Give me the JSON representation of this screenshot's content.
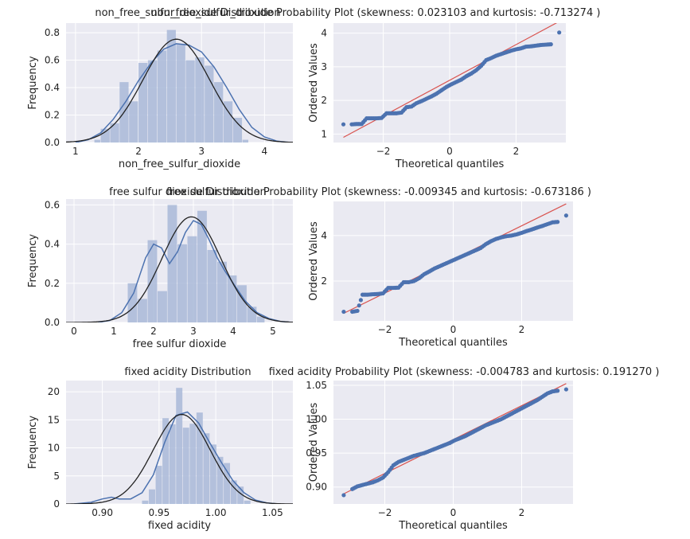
{
  "colors": {
    "panel_bg": "#eaeaf2",
    "grid": "#ffffff",
    "hist_fill": "#a9b8d8",
    "kde_line": "#4c72b0",
    "normal_fit_line": "#222222",
    "qq_points": "#4c72b0",
    "qq_reference_line": "#d9534f"
  },
  "chart_data": [
    {
      "type": "bar",
      "title": "non_free_sulfur_dioxide Distribution",
      "xlabel": "non_free_sulfur_dioxide",
      "ylabel": "Frequency",
      "xlim": [
        0.85,
        4.45
      ],
      "ylim": [
        0,
        0.87
      ],
      "xticks": [
        1,
        2,
        3,
        4
      ],
      "yticks": [
        0.0,
        0.2,
        0.4,
        0.6,
        0.8
      ],
      "ytick_labels": [
        "0.0",
        "0.2",
        "0.4",
        "0.6",
        "0.8"
      ],
      "grid": true,
      "bins": [
        {
          "x0": 1.3,
          "x1": 1.4,
          "h": 0.02
        },
        {
          "x0": 1.4,
          "x1": 1.55,
          "h": 0.1
        },
        {
          "x0": 1.55,
          "x1": 1.7,
          "h": 0.14
        },
        {
          "x0": 1.7,
          "x1": 1.85,
          "h": 0.44
        },
        {
          "x0": 1.85,
          "x1": 2.0,
          "h": 0.3
        },
        {
          "x0": 2.0,
          "x1": 2.15,
          "h": 0.58
        },
        {
          "x0": 2.15,
          "x1": 2.3,
          "h": 0.6
        },
        {
          "x0": 2.3,
          "x1": 2.45,
          "h": 0.67
        },
        {
          "x0": 2.45,
          "x1": 2.6,
          "h": 0.82
        },
        {
          "x0": 2.6,
          "x1": 2.75,
          "h": 0.72
        },
        {
          "x0": 2.75,
          "x1": 2.9,
          "h": 0.6
        },
        {
          "x0": 2.9,
          "x1": 3.05,
          "h": 0.62
        },
        {
          "x0": 3.05,
          "x1": 3.2,
          "h": 0.56
        },
        {
          "x0": 3.2,
          "x1": 3.35,
          "h": 0.44
        },
        {
          "x0": 3.35,
          "x1": 3.5,
          "h": 0.3
        },
        {
          "x0": 3.5,
          "x1": 3.65,
          "h": 0.18
        },
        {
          "x0": 3.65,
          "x1": 3.75,
          "h": 0.02
        }
      ],
      "kde": {
        "x": [
          1.0,
          1.2,
          1.4,
          1.6,
          1.8,
          2.0,
          2.2,
          2.4,
          2.6,
          2.8,
          3.0,
          3.2,
          3.4,
          3.6,
          3.8,
          4.0,
          4.2,
          4.4
        ],
        "y": [
          0.0,
          0.02,
          0.07,
          0.17,
          0.3,
          0.45,
          0.58,
          0.68,
          0.72,
          0.71,
          0.66,
          0.55,
          0.4,
          0.24,
          0.11,
          0.04,
          0.01,
          0.0
        ]
      },
      "normal_fit": {
        "mean": 2.6,
        "std": 0.53
      }
    },
    {
      "type": "scatter",
      "title": "non_free_sulfur_dioxide Probability Plot (skewness: 0.023103 and kurtosis: -0.713274 )",
      "xlabel": "Theoretical quantiles",
      "ylabel": "Ordered Values",
      "xlim": [
        -3.5,
        3.5
      ],
      "ylim": [
        0.75,
        4.3
      ],
      "xticks": [
        -2,
        0,
        2
      ],
      "xtick_labels": [
        "−2",
        "0",
        "2"
      ],
      "yticks": [
        1,
        2,
        3,
        4
      ],
      "grid": true,
      "points": {
        "x": [
          -3.2,
          -2.95,
          -2.8,
          -2.65,
          -2.5,
          -2.35,
          -2.2,
          -2.05,
          -1.9,
          -1.75,
          -1.6,
          -1.45,
          -1.3,
          -1.15,
          -1.0,
          -0.85,
          -0.7,
          -0.55,
          -0.4,
          -0.25,
          -0.1,
          0.05,
          0.2,
          0.35,
          0.5,
          0.65,
          0.8,
          0.95,
          1.1,
          1.25,
          1.4,
          1.55,
          1.7,
          1.85,
          2.0,
          2.15,
          2.3,
          2.45,
          2.6,
          2.75,
          2.9,
          3.05,
          3.3
        ],
        "y": [
          1.29,
          1.29,
          1.3,
          1.3,
          1.47,
          1.47,
          1.47,
          1.48,
          1.62,
          1.62,
          1.62,
          1.64,
          1.8,
          1.82,
          1.92,
          1.98,
          2.05,
          2.12,
          2.2,
          2.3,
          2.4,
          2.48,
          2.55,
          2.62,
          2.72,
          2.8,
          2.9,
          3.03,
          3.2,
          3.26,
          3.33,
          3.38,
          3.43,
          3.48,
          3.52,
          3.55,
          3.6,
          3.61,
          3.63,
          3.65,
          3.66,
          3.67,
          4.02
        ]
      },
      "fit_line": {
        "slope": 0.53,
        "intercept": 2.6
      }
    },
    {
      "type": "bar",
      "title": "free sulfur dioxide Distribution",
      "xlabel": "free sulfur dioxide",
      "ylabel": "Frequency",
      "xlim": [
        -0.2,
        5.5
      ],
      "ylim": [
        0,
        0.63
      ],
      "xticks": [
        0,
        1,
        2,
        3,
        4,
        5
      ],
      "yticks": [
        0.0,
        0.2,
        0.4,
        0.6
      ],
      "ytick_labels": [
        "0.0",
        "0.2",
        "0.4",
        "0.6"
      ],
      "grid": true,
      "bins": [
        {
          "x0": 1.35,
          "x1": 1.6,
          "h": 0.2
        },
        {
          "x0": 1.6,
          "x1": 1.85,
          "h": 0.12
        },
        {
          "x0": 1.85,
          "x1": 2.1,
          "h": 0.42
        },
        {
          "x0": 2.1,
          "x1": 2.35,
          "h": 0.16
        },
        {
          "x0": 2.35,
          "x1": 2.6,
          "h": 0.6
        },
        {
          "x0": 2.6,
          "x1": 2.85,
          "h": 0.4
        },
        {
          "x0": 2.85,
          "x1": 3.1,
          "h": 0.44
        },
        {
          "x0": 3.1,
          "x1": 3.35,
          "h": 0.57
        },
        {
          "x0": 3.35,
          "x1": 3.6,
          "h": 0.37
        },
        {
          "x0": 3.6,
          "x1": 3.85,
          "h": 0.31
        },
        {
          "x0": 3.85,
          "x1": 4.1,
          "h": 0.24
        },
        {
          "x0": 4.1,
          "x1": 4.35,
          "h": 0.19
        },
        {
          "x0": 4.35,
          "x1": 4.6,
          "h": 0.08
        },
        {
          "x0": 4.6,
          "x1": 4.8,
          "h": 0.03
        }
      ],
      "kde": {
        "x": [
          0.6,
          0.9,
          1.2,
          1.5,
          1.8,
          2.0,
          2.2,
          2.4,
          2.6,
          2.8,
          3.0,
          3.2,
          3.4,
          3.6,
          3.8,
          4.0,
          4.3,
          4.6,
          4.9,
          5.2,
          5.5
        ],
        "y": [
          0.0,
          0.01,
          0.05,
          0.15,
          0.33,
          0.4,
          0.38,
          0.3,
          0.36,
          0.46,
          0.52,
          0.5,
          0.42,
          0.33,
          0.26,
          0.2,
          0.11,
          0.05,
          0.02,
          0.005,
          0.0
        ]
      },
      "normal_fit": {
        "mean": 2.95,
        "std": 0.74
      }
    },
    {
      "type": "scatter",
      "title": "free sulfur dioxide Probability Plot (skewness: -0.009345 and kurtosis: -0.673186 )",
      "xlabel": "Theoretical quantiles",
      "ylabel": "Ordered Values",
      "xlim": [
        -3.5,
        3.5
      ],
      "ylim": [
        0.25,
        5.5
      ],
      "xticks": [
        -2,
        0,
        2
      ],
      "xtick_labels": [
        "−2",
        "0",
        "2"
      ],
      "yticks": [
        2,
        4
      ],
      "grid": true,
      "points": {
        "x": [
          -3.2,
          -2.95,
          -2.8,
          -2.65,
          -2.5,
          -2.35,
          -2.2,
          -2.05,
          -1.9,
          -1.75,
          -1.6,
          -1.45,
          -1.3,
          -1.15,
          -1.0,
          -0.85,
          -0.7,
          -0.55,
          -0.4,
          -0.25,
          -0.1,
          0.05,
          0.2,
          0.35,
          0.5,
          0.65,
          0.8,
          0.95,
          1.1,
          1.25,
          1.4,
          1.55,
          1.7,
          1.85,
          2.0,
          2.15,
          2.3,
          2.45,
          2.6,
          2.75,
          2.9,
          3.05,
          3.3
        ],
        "y": [
          0.65,
          0.65,
          0.69,
          1.4,
          1.4,
          1.42,
          1.43,
          1.46,
          1.7,
          1.7,
          1.71,
          1.95,
          1.95,
          2.0,
          2.12,
          2.3,
          2.42,
          2.55,
          2.65,
          2.75,
          2.85,
          2.95,
          3.05,
          3.15,
          3.25,
          3.35,
          3.45,
          3.62,
          3.75,
          3.85,
          3.92,
          3.97,
          4.0,
          4.05,
          4.12,
          4.2,
          4.27,
          4.35,
          4.42,
          4.5,
          4.58,
          4.6,
          4.88
        ]
      },
      "fit_line": {
        "slope": 0.74,
        "intercept": 2.95
      }
    },
    {
      "type": "bar",
      "title": "fixed acidity Distribution",
      "xlabel": "fixed acidity",
      "ylabel": "Frequency",
      "xlim": [
        0.868,
        1.068
      ],
      "ylim": [
        0,
        22
      ],
      "xticks": [
        0.9,
        0.95,
        1.0,
        1.05
      ],
      "xtick_labels": [
        "0.90",
        "0.95",
        "1.00",
        "1.05"
      ],
      "yticks": [
        0,
        5,
        10,
        15,
        20
      ],
      "grid": true,
      "bins": [
        {
          "x0": 0.935,
          "x1": 0.941,
          "h": 0.6
        },
        {
          "x0": 0.941,
          "x1": 0.947,
          "h": 2.6
        },
        {
          "x0": 0.947,
          "x1": 0.953,
          "h": 6.8
        },
        {
          "x0": 0.953,
          "x1": 0.959,
          "h": 15.3
        },
        {
          "x0": 0.959,
          "x1": 0.965,
          "h": 14.2
        },
        {
          "x0": 0.965,
          "x1": 0.971,
          "h": 20.7
        },
        {
          "x0": 0.971,
          "x1": 0.977,
          "h": 13.6
        },
        {
          "x0": 0.977,
          "x1": 0.983,
          "h": 14.3
        },
        {
          "x0": 0.983,
          "x1": 0.989,
          "h": 16.3
        },
        {
          "x0": 0.989,
          "x1": 0.995,
          "h": 12.6
        },
        {
          "x0": 0.995,
          "x1": 1.001,
          "h": 10.6
        },
        {
          "x0": 1.001,
          "x1": 1.007,
          "h": 8.4
        },
        {
          "x0": 1.007,
          "x1": 1.013,
          "h": 7.3
        },
        {
          "x0": 1.013,
          "x1": 1.019,
          "h": 4.2
        },
        {
          "x0": 1.019,
          "x1": 1.025,
          "h": 3.1
        },
        {
          "x0": 1.025,
          "x1": 1.031,
          "h": 0.6
        }
      ],
      "kde": {
        "x": [
          0.875,
          0.89,
          0.9,
          0.908,
          0.915,
          0.925,
          0.935,
          0.945,
          0.955,
          0.965,
          0.975,
          0.985,
          0.995,
          1.005,
          1.015,
          1.025,
          1.035,
          1.045,
          1.055
        ],
        "y": [
          0.0,
          0.3,
          0.9,
          1.2,
          0.9,
          0.9,
          2.0,
          5.2,
          11.0,
          15.8,
          16.4,
          14.4,
          10.8,
          7.4,
          4.2,
          2.0,
          0.7,
          0.2,
          0.0
        ]
      },
      "normal_fit": {
        "mean": 0.97,
        "std": 0.025
      }
    },
    {
      "type": "scatter",
      "title": "fixed acidity Probability Plot (skewness: -0.004783 and kurtosis: 0.191270 )",
      "xlabel": "Theoretical quantiles",
      "ylabel": "Ordered Values",
      "xlim": [
        -3.5,
        3.5
      ],
      "ylim": [
        0.875,
        1.057
      ],
      "xticks": [
        -2,
        0,
        2
      ],
      "xtick_labels": [
        "−2",
        "0",
        "2"
      ],
      "yticks": [
        0.9,
        0.95,
        1.0,
        1.05
      ],
      "ytick_labels": [
        "0.90",
        "0.95",
        "1.00",
        "1.05"
      ],
      "grid": true,
      "points": {
        "x": [
          -3.2,
          -2.95,
          -2.8,
          -2.65,
          -2.5,
          -2.35,
          -2.2,
          -2.05,
          -1.9,
          -1.75,
          -1.6,
          -1.45,
          -1.3,
          -1.15,
          -1.0,
          -0.85,
          -0.7,
          -0.55,
          -0.4,
          -0.25,
          -0.1,
          0.05,
          0.2,
          0.35,
          0.5,
          0.65,
          0.8,
          0.95,
          1.1,
          1.25,
          1.4,
          1.55,
          1.7,
          1.85,
          2.0,
          2.15,
          2.3,
          2.45,
          2.6,
          2.75,
          2.9,
          3.05,
          3.3
        ],
        "y": [
          0.888,
          0.897,
          0.901,
          0.903,
          0.905,
          0.907,
          0.91,
          0.914,
          0.922,
          0.932,
          0.937,
          0.94,
          0.943,
          0.946,
          0.948,
          0.95,
          0.953,
          0.956,
          0.959,
          0.962,
          0.965,
          0.969,
          0.972,
          0.975,
          0.979,
          0.983,
          0.987,
          0.991,
          0.994,
          0.997,
          1.0,
          1.004,
          1.008,
          1.012,
          1.016,
          1.02,
          1.024,
          1.028,
          1.033,
          1.038,
          1.041,
          1.042,
          1.044
        ]
      },
      "fit_line": {
        "slope": 0.025,
        "intercept": 0.97
      }
    }
  ]
}
